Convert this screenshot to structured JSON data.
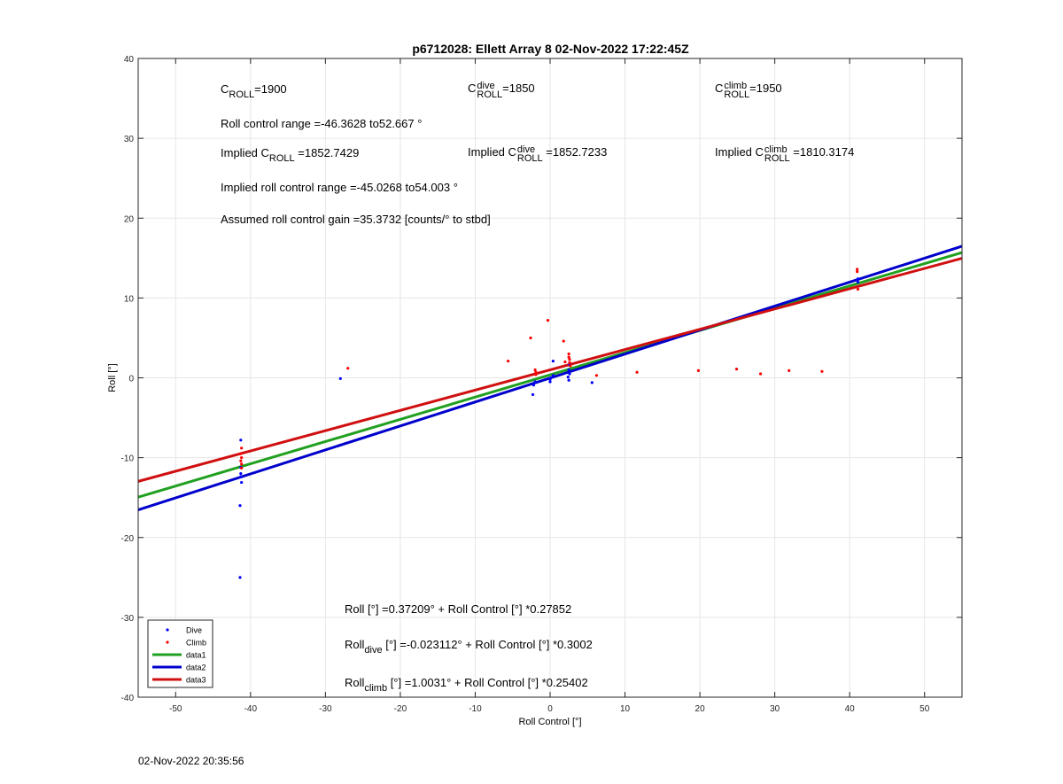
{
  "chart_data": {
    "type": "scatter",
    "title": "p6712028: Ellett Array 8 02-Nov-2022 17:22:45Z",
    "xlabel": "Roll Control [°]",
    "ylabel": "Roll [°]",
    "xlim": [
      -55,
      55
    ],
    "ylim": [
      -40,
      40
    ],
    "xticks": [
      -50,
      -40,
      -30,
      -20,
      -10,
      0,
      10,
      20,
      30,
      40,
      50
    ],
    "yticks": [
      -40,
      -30,
      -20,
      -10,
      0,
      10,
      20,
      30,
      40
    ],
    "grid": true,
    "legend_position": "bottom-left",
    "series": [
      {
        "name": "Dive",
        "kind": "points",
        "color": "#0000ff",
        "points": [
          [
            -41.3,
            -7.8
          ],
          [
            -41.3,
            -11.2
          ],
          [
            -41.3,
            -12.0
          ],
          [
            -41.3,
            -12.4
          ],
          [
            -41.2,
            -13.1
          ],
          [
            -41.4,
            -16.0
          ],
          [
            -41.4,
            -25.0
          ],
          [
            -28.0,
            -0.1
          ],
          [
            -2.3,
            -2.1
          ],
          [
            -2.2,
            -0.9
          ],
          [
            -2.0,
            -0.5
          ],
          [
            0.0,
            -0.5
          ],
          [
            0.0,
            -0.2
          ],
          [
            0.1,
            0.0
          ],
          [
            0.4,
            2.1
          ],
          [
            0.4,
            0.3
          ],
          [
            2.4,
            0.1
          ],
          [
            2.5,
            -0.3
          ],
          [
            2.6,
            0.5
          ],
          [
            2.5,
            1.0
          ],
          [
            2.6,
            1.6
          ],
          [
            5.6,
            -0.6
          ],
          [
            41.1,
            12.4
          ],
          [
            41.1,
            12.0
          ]
        ]
      },
      {
        "name": "Climb",
        "kind": "points",
        "color": "#ff0000",
        "points": [
          [
            -41.2,
            -8.8
          ],
          [
            -41.3,
            -9.5
          ],
          [
            -41.2,
            -10.0
          ],
          [
            -41.3,
            -10.4
          ],
          [
            -41.2,
            -10.8
          ],
          [
            -41.2,
            -11.3
          ],
          [
            -27.0,
            1.2
          ],
          [
            -5.6,
            2.1
          ],
          [
            -2.6,
            5.0
          ],
          [
            -2.0,
            1.0
          ],
          [
            -1.9,
            0.7
          ],
          [
            -1.9,
            0.4
          ],
          [
            -0.3,
            7.2
          ],
          [
            1.8,
            4.6
          ],
          [
            2.0,
            2.0
          ],
          [
            2.5,
            3.0
          ],
          [
            2.5,
            2.6
          ],
          [
            2.6,
            2.3
          ],
          [
            2.6,
            1.9
          ],
          [
            2.7,
            1.5
          ],
          [
            6.2,
            0.3
          ],
          [
            11.6,
            0.7
          ],
          [
            19.8,
            0.9
          ],
          [
            24.9,
            1.1
          ],
          [
            28.1,
            0.5
          ],
          [
            31.9,
            0.9
          ],
          [
            36.3,
            0.8
          ],
          [
            41.0,
            13.6
          ],
          [
            41.0,
            13.3
          ],
          [
            41.1,
            11.1
          ]
        ]
      },
      {
        "name": "data1",
        "kind": "line",
        "color": "#20a020",
        "x": [
          -55,
          55
        ],
        "intercept": 0.37209,
        "slope": 0.27852
      },
      {
        "name": "data2",
        "kind": "line",
        "color": "#0000cc",
        "x": [
          -55,
          55
        ],
        "intercept": -0.023112,
        "slope": 0.3002
      },
      {
        "name": "data3",
        "kind": "line",
        "color": "#d01010",
        "x": [
          -55,
          55
        ],
        "intercept": 1.0031,
        "slope": 0.25402
      }
    ]
  },
  "annotations": {
    "c_roll": {
      "label": "C",
      "sub": "ROLL",
      "value": "=1900"
    },
    "c_roll_dive": {
      "label": "C",
      "sup": "dive",
      "sub": "ROLL",
      "value": "=1850"
    },
    "c_roll_climb": {
      "label": "C",
      "sup": "climb",
      "sub": "ROLL",
      "value": "=1950"
    },
    "roll_control_range": "Roll control range =-46.3628 to52.667 °",
    "implied_c_roll": {
      "prefix": "Implied C",
      "sub": "ROLL",
      "value": " =1852.7429"
    },
    "implied_c_roll_dive": {
      "prefix": "Implied C",
      "sup": "dive",
      "sub": "ROLL",
      "value": " =1852.7233"
    },
    "implied_c_roll_climb": {
      "prefix": "Implied C",
      "sup": "climb",
      "sub": "ROLL",
      "value": " =1810.3174"
    },
    "implied_range": "Implied roll control range =-45.0268 to54.003 °",
    "gain": "Assumed roll control gain =35.3732 [counts/° to stbd]",
    "fit_all": {
      "prefix": "Roll [°] =0.37209° + Roll Control [°] *0.27852"
    },
    "fit_dive": {
      "prefix": "Roll",
      "sub": "dive",
      "suffix": " [°] =-0.023112° + Roll Control [°] *0.3002"
    },
    "fit_climb": {
      "prefix": "Roll",
      "sub": "climb",
      "suffix": " [°] =1.0031° + Roll Control [°] *0.25402"
    }
  },
  "footer_timestamp": "02-Nov-2022 20:35:56"
}
